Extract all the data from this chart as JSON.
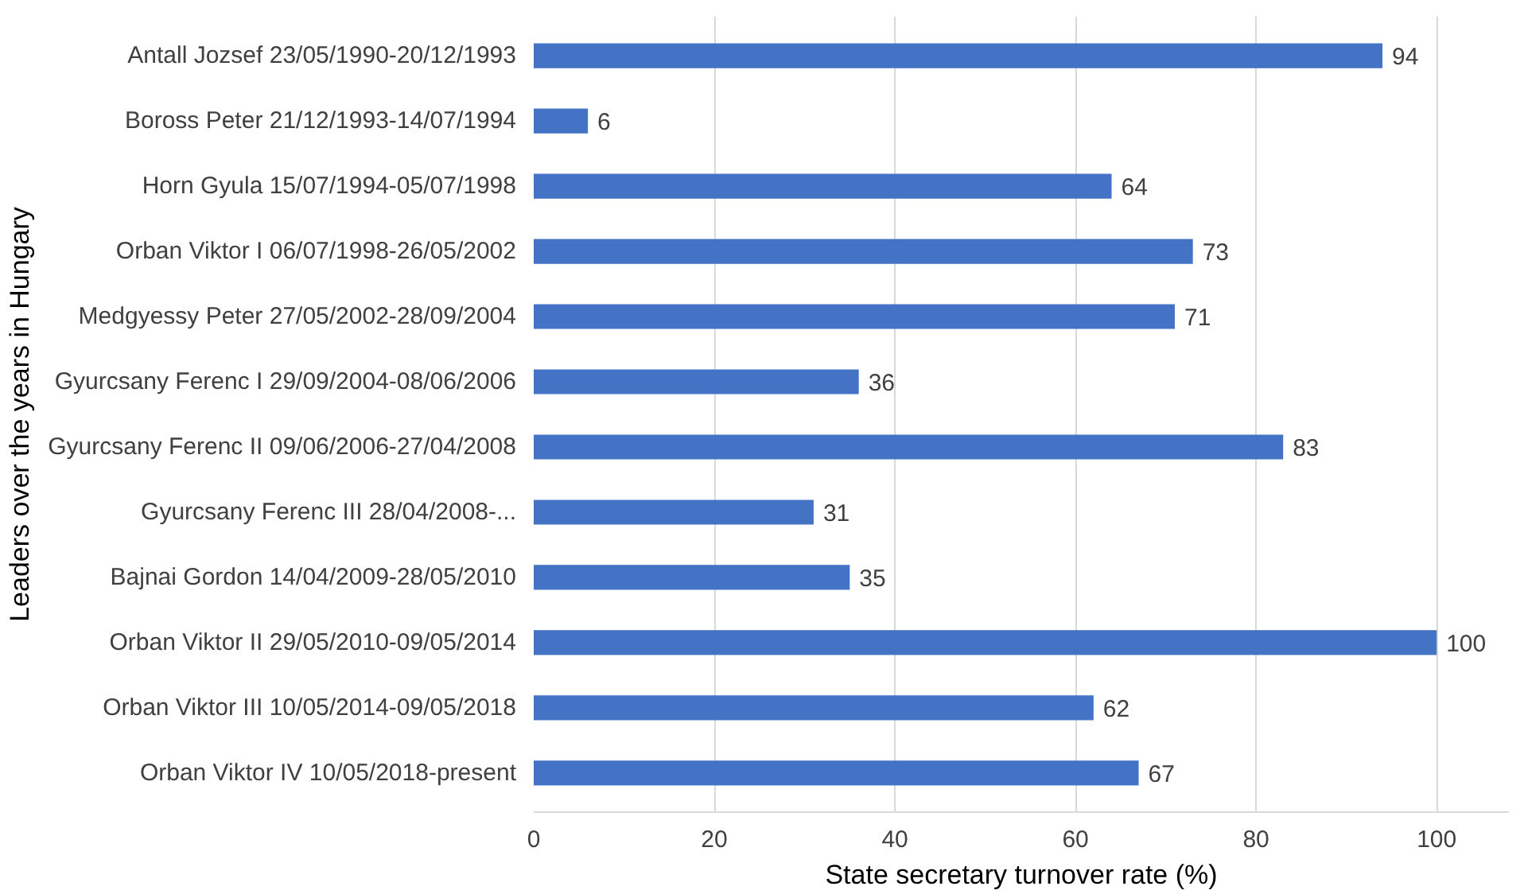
{
  "chart_data": {
    "type": "bar",
    "orientation": "horizontal",
    "xlabel": "State secretary turnover rate (%)",
    "ylabel": "Leaders over the years in Hungary",
    "categories": [
      "Antall Jozsef 23/05/1990-20/12/1993",
      "Boross Peter 21/12/1993-14/07/1994",
      "Horn Gyula 15/07/1994-05/07/1998",
      "Orban Viktor I 06/07/1998-26/05/2002",
      "Medgyessy Peter 27/05/2002-28/09/2004",
      "Gyurcsany Ferenc I 29/09/2004-08/06/2006",
      "Gyurcsany Ferenc II 09/06/2006-27/04/2008",
      "Gyurcsany Ferenc III 28/04/2008-...",
      "Bajnai Gordon 14/04/2009-28/05/2010",
      "Orban Viktor II 29/05/2010-09/05/2014",
      "Orban Viktor III 10/05/2014-09/05/2018",
      "Orban Viktor IV 10/05/2018-present"
    ],
    "values": [
      94,
      6,
      64,
      73,
      71,
      36,
      83,
      31,
      35,
      100,
      62,
      67
    ],
    "color": "#4472c4",
    "xlim": [
      0,
      108
    ],
    "xticks": [
      0,
      20,
      40,
      60,
      80,
      100
    ],
    "grid": "x",
    "data_labels": true
  }
}
